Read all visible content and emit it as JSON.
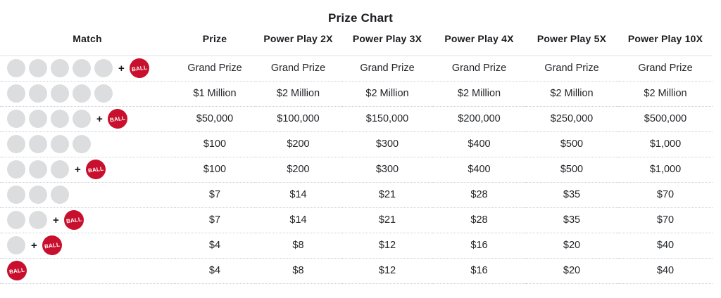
{
  "title": "Prize Chart",
  "colors": {
    "powerball_red": "#c8102e",
    "ball_gray": "#dcdddf",
    "text": "#202227",
    "header_divider": "#e2e2e4",
    "row_divider": "#cfcfd6"
  },
  "table": {
    "headers": [
      "Match",
      "Prize",
      "Power Play 2X",
      "Power Play 3X",
      "Power Play 4X",
      "Power Play 5X",
      "Power Play 10X"
    ],
    "powerball_text": "BALL",
    "plus": "+",
    "rows": [
      {
        "match": {
          "white_balls": 5,
          "powerball": true
        },
        "prizes": [
          "Grand Prize",
          "Grand Prize",
          "Grand Prize",
          "Grand Prize",
          "Grand Prize",
          "Grand Prize"
        ]
      },
      {
        "match": {
          "white_balls": 5,
          "powerball": false
        },
        "prizes": [
          "$1 Million",
          "$2 Million",
          "$2 Million",
          "$2 Million",
          "$2 Million",
          "$2 Million"
        ]
      },
      {
        "match": {
          "white_balls": 4,
          "powerball": true
        },
        "prizes": [
          "$50,000",
          "$100,000",
          "$150,000",
          "$200,000",
          "$250,000",
          "$500,000"
        ]
      },
      {
        "match": {
          "white_balls": 4,
          "powerball": false
        },
        "prizes": [
          "$100",
          "$200",
          "$300",
          "$400",
          "$500",
          "$1,000"
        ]
      },
      {
        "match": {
          "white_balls": 3,
          "powerball": true
        },
        "prizes": [
          "$100",
          "$200",
          "$300",
          "$400",
          "$500",
          "$1,000"
        ]
      },
      {
        "match": {
          "white_balls": 3,
          "powerball": false
        },
        "prizes": [
          "$7",
          "$14",
          "$21",
          "$28",
          "$35",
          "$70"
        ]
      },
      {
        "match": {
          "white_balls": 2,
          "powerball": true
        },
        "prizes": [
          "$7",
          "$14",
          "$21",
          "$28",
          "$35",
          "$70"
        ]
      },
      {
        "match": {
          "white_balls": 1,
          "powerball": true
        },
        "prizes": [
          "$4",
          "$8",
          "$12",
          "$16",
          "$20",
          "$40"
        ]
      },
      {
        "match": {
          "white_balls": 0,
          "powerball": true
        },
        "prizes": [
          "$4",
          "$8",
          "$12",
          "$16",
          "$20",
          "$40"
        ]
      }
    ]
  },
  "chart_data": {
    "type": "table",
    "title": "Prize Chart",
    "columns": [
      "Match",
      "Prize",
      "Power Play 2X",
      "Power Play 3X",
      "Power Play 4X",
      "Power Play 5X",
      "Power Play 10X"
    ],
    "rows": [
      [
        "5 white balls + Powerball",
        "Grand Prize",
        "Grand Prize",
        "Grand Prize",
        "Grand Prize",
        "Grand Prize",
        "Grand Prize"
      ],
      [
        "5 white balls",
        "$1 Million",
        "$2 Million",
        "$2 Million",
        "$2 Million",
        "$2 Million",
        "$2 Million"
      ],
      [
        "4 white balls + Powerball",
        "$50,000",
        "$100,000",
        "$150,000",
        "$200,000",
        "$250,000",
        "$500,000"
      ],
      [
        "4 white balls",
        "$100",
        "$200",
        "$300",
        "$400",
        "$500",
        "$1,000"
      ],
      [
        "3 white balls + Powerball",
        "$100",
        "$200",
        "$300",
        "$400",
        "$500",
        "$1,000"
      ],
      [
        "3 white balls",
        "$7",
        "$14",
        "$21",
        "$28",
        "$35",
        "$70"
      ],
      [
        "2 white balls + Powerball",
        "$7",
        "$14",
        "$21",
        "$28",
        "$35",
        "$70"
      ],
      [
        "1 white ball + Powerball",
        "$4",
        "$8",
        "$12",
        "$16",
        "$20",
        "$40"
      ],
      [
        "Powerball only",
        "$4",
        "$8",
        "$12",
        "$16",
        "$20",
        "$40"
      ]
    ]
  }
}
